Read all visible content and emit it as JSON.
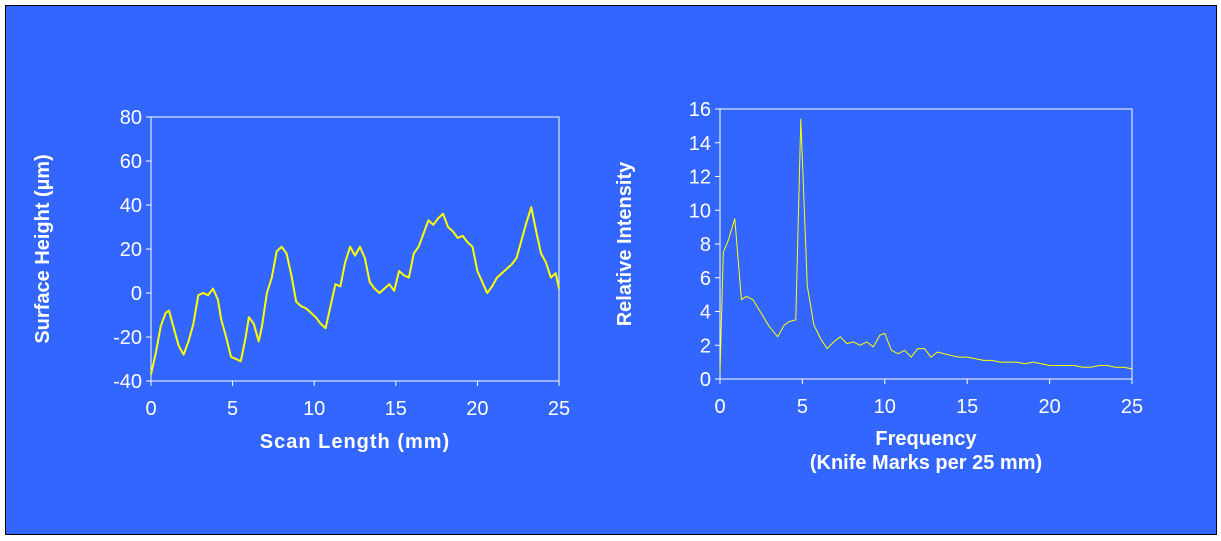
{
  "colors": {
    "background": "#3366FF",
    "plot_line": "#FFFF00",
    "axis": "#FFFFFF",
    "text": "#FFFFFF"
  },
  "chart_data": [
    {
      "type": "line",
      "title": "",
      "xlabel": "Scan Length (mm)",
      "ylabel": "Surface Height (µm)",
      "xlim": [
        0,
        25
      ],
      "ylim": [
        -40,
        80
      ],
      "x_ticks": [
        0,
        5,
        10,
        15,
        20,
        25
      ],
      "y_ticks": [
        -40,
        -20,
        0,
        20,
        40,
        60,
        80
      ],
      "grid": false,
      "series": [
        {
          "x": [
            0,
            0.3,
            0.6,
            0.9,
            1.1,
            1.4,
            1.7,
            2.0,
            2.3,
            2.6,
            2.9,
            3.2,
            3.5,
            3.8,
            4.1,
            4.3,
            4.6,
            4.9,
            5.2,
            5.5,
            5.8,
            6.0,
            6.3,
            6.6,
            6.8,
            7.1,
            7.4,
            7.7,
            8.0,
            8.3,
            8.6,
            8.9,
            9.2,
            9.5,
            9.8,
            10.1,
            10.4,
            10.7,
            11.0,
            11.3,
            11.6,
            11.9,
            12.2,
            12.5,
            12.8,
            13.1,
            13.4,
            13.7,
            14.0,
            14.3,
            14.6,
            14.9,
            15.2,
            15.5,
            15.8,
            16.1,
            16.4,
            16.7,
            17.0,
            17.3,
            17.6,
            17.9,
            18.2,
            18.5,
            18.8,
            19.1,
            19.4,
            19.7,
            20.0,
            20.3,
            20.6,
            20.9,
            21.2,
            21.5,
            21.8,
            22.1,
            22.4,
            22.7,
            23.0,
            23.3,
            23.6,
            23.9,
            24.2,
            24.5,
            24.8,
            25.0
          ],
          "y": [
            -37,
            -27,
            -15,
            -9,
            -8,
            -16,
            -24,
            -28,
            -22,
            -14,
            -1,
            0,
            -1,
            2,
            -3,
            -12,
            -20,
            -29,
            -30,
            -31,
            -20,
            -11,
            -14,
            -22,
            -15,
            0,
            7,
            19,
            21,
            18,
            8,
            -4,
            -6,
            -7,
            -9,
            -11,
            -14,
            -16,
            -6,
            4,
            3,
            14,
            21,
            17,
            21,
            16,
            5,
            2,
            0,
            2,
            4,
            1,
            10,
            8,
            7,
            18,
            21,
            27,
            33,
            31,
            34,
            36,
            30,
            28,
            25,
            26,
            23,
            21,
            10,
            5,
            0,
            3,
            7,
            9,
            11,
            13,
            16,
            24,
            32,
            39,
            28,
            18,
            14,
            7,
            9,
            2
          ]
        }
      ]
    },
    {
      "type": "line",
      "title": "",
      "xlabel": "Frequency",
      "xlabel_line2": "(Knife Marks per 25 mm)",
      "ylabel": "Relative Intensity",
      "xlim": [
        0,
        25
      ],
      "ylim": [
        0,
        16
      ],
      "x_ticks": [
        0,
        5,
        10,
        15,
        20,
        25
      ],
      "y_ticks": [
        0,
        2,
        4,
        6,
        8,
        10,
        12,
        14,
        16
      ],
      "grid": false,
      "series": [
        {
          "x": [
            0,
            0.2,
            0.5,
            0.9,
            1.3,
            1.6,
            2.0,
            2.5,
            3.0,
            3.5,
            3.9,
            4.2,
            4.6,
            4.9,
            5.3,
            5.7,
            6.1,
            6.5,
            6.9,
            7.3,
            7.7,
            8.1,
            8.5,
            8.9,
            9.3,
            9.7,
            10.0,
            10.4,
            10.8,
            11.2,
            11.6,
            12.0,
            12.4,
            12.8,
            13.2,
            13.6,
            14.0,
            14.5,
            15.0,
            15.5,
            16.0,
            16.5,
            17.0,
            17.5,
            18.0,
            18.5,
            19.0,
            19.5,
            20.0,
            20.5,
            21.0,
            21.5,
            22.0,
            22.5,
            23.0,
            23.5,
            24.0,
            24.5,
            25.0
          ],
          "y": [
            0.3,
            7.5,
            8.2,
            9.5,
            4.7,
            4.9,
            4.7,
            3.9,
            3.1,
            2.5,
            3.2,
            3.4,
            3.5,
            15.4,
            5.5,
            3.2,
            2.4,
            1.8,
            2.2,
            2.5,
            2.1,
            2.2,
            2.0,
            2.2,
            1.9,
            2.6,
            2.7,
            1.7,
            1.5,
            1.7,
            1.3,
            1.8,
            1.8,
            1.3,
            1.6,
            1.5,
            1.4,
            1.3,
            1.3,
            1.2,
            1.1,
            1.1,
            1.0,
            1.0,
            1.0,
            0.9,
            1.0,
            0.9,
            0.8,
            0.8,
            0.8,
            0.8,
            0.7,
            0.7,
            0.8,
            0.8,
            0.7,
            0.7,
            0.6
          ]
        }
      ]
    }
  ]
}
